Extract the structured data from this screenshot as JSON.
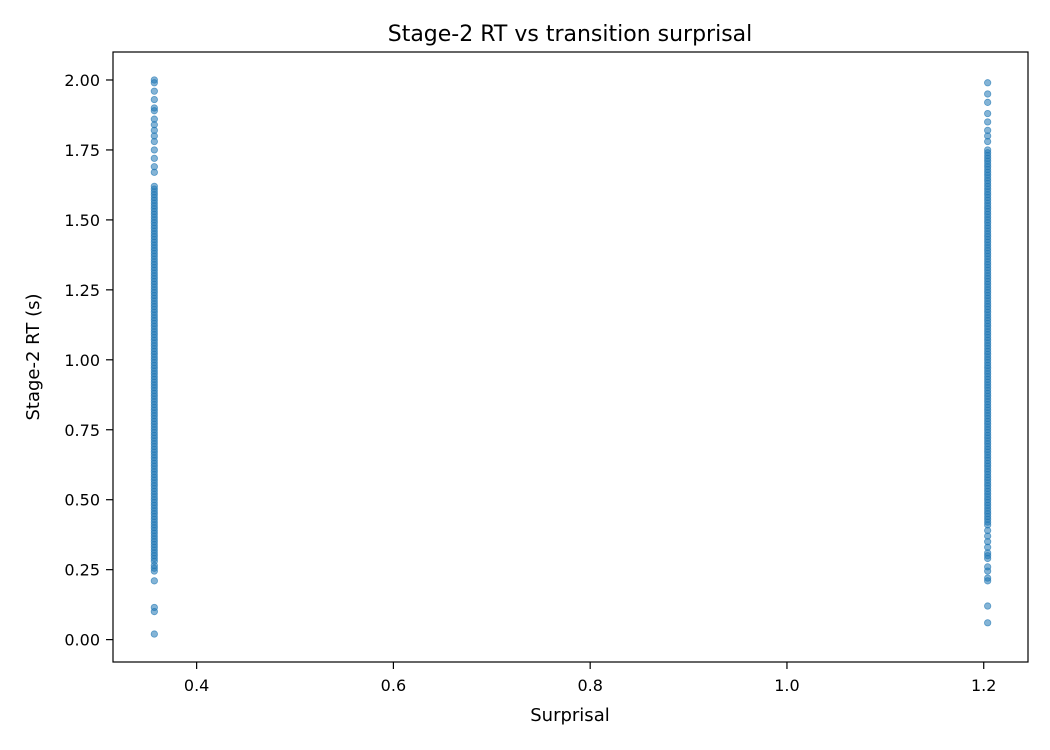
{
  "chart_data": {
    "type": "scatter",
    "title": "Stage-2 RT vs transition surprisal",
    "xlabel": "Surprisal",
    "ylabel": "Stage-2 RT (s)",
    "xlim": [
      0.315,
      1.245
    ],
    "ylim": [
      -0.08,
      2.1
    ],
    "xticks": [
      0.4,
      0.6,
      0.8,
      1.0,
      1.2
    ],
    "xtick_labels": [
      "0.4",
      "0.6",
      "0.8",
      "1.0",
      "1.2"
    ],
    "yticks": [
      0.0,
      0.25,
      0.5,
      0.75,
      1.0,
      1.25,
      1.5,
      1.75,
      2.0
    ],
    "ytick_labels": [
      "0.00",
      "0.25",
      "0.50",
      "0.75",
      "1.00",
      "1.25",
      "1.50",
      "1.75",
      "2.00"
    ],
    "grid": false,
    "legend": "none",
    "point_color": "#1f77b4",
    "point_alpha": 0.55,
    "series": [
      {
        "x_value": 0.357,
        "y_values": [
          0.02,
          0.1,
          0.115,
          0.21,
          0.245,
          0.255,
          0.265,
          0.28,
          0.29,
          0.3,
          0.31,
          0.32,
          0.33,
          0.34,
          0.35,
          0.36,
          0.37,
          0.38,
          0.39,
          0.4,
          0.41,
          0.42,
          0.43,
          0.44,
          0.45,
          0.46,
          0.47,
          0.48,
          0.49,
          0.5,
          0.51,
          0.52,
          0.53,
          0.54,
          0.55,
          0.56,
          0.57,
          0.58,
          0.59,
          0.6,
          0.61,
          0.62,
          0.63,
          0.64,
          0.65,
          0.66,
          0.67,
          0.68,
          0.69,
          0.7,
          0.71,
          0.72,
          0.73,
          0.74,
          0.75,
          0.76,
          0.77,
          0.78,
          0.79,
          0.8,
          0.81,
          0.82,
          0.83,
          0.84,
          0.85,
          0.86,
          0.87,
          0.88,
          0.89,
          0.9,
          0.91,
          0.92,
          0.93,
          0.94,
          0.95,
          0.96,
          0.97,
          0.98,
          0.99,
          1.0,
          1.01,
          1.02,
          1.03,
          1.04,
          1.05,
          1.06,
          1.07,
          1.08,
          1.09,
          1.1,
          1.11,
          1.12,
          1.13,
          1.14,
          1.15,
          1.16,
          1.17,
          1.18,
          1.19,
          1.2,
          1.21,
          1.22,
          1.23,
          1.24,
          1.25,
          1.26,
          1.27,
          1.28,
          1.29,
          1.3,
          1.31,
          1.32,
          1.33,
          1.34,
          1.35,
          1.36,
          1.37,
          1.38,
          1.39,
          1.4,
          1.41,
          1.42,
          1.43,
          1.44,
          1.45,
          1.46,
          1.47,
          1.48,
          1.49,
          1.5,
          1.51,
          1.52,
          1.53,
          1.54,
          1.55,
          1.56,
          1.57,
          1.58,
          1.59,
          1.6,
          1.61,
          1.62,
          1.67,
          1.69,
          1.72,
          1.75,
          1.78,
          1.8,
          1.82,
          1.84,
          1.86,
          1.89,
          1.9,
          1.93,
          1.96,
          1.99,
          2.0
        ]
      },
      {
        "x_value": 1.204,
        "y_values": [
          0.06,
          0.12,
          0.21,
          0.22,
          0.245,
          0.26,
          0.29,
          0.3,
          0.31,
          0.33,
          0.35,
          0.37,
          0.39,
          0.41,
          0.42,
          0.43,
          0.44,
          0.45,
          0.46,
          0.47,
          0.48,
          0.49,
          0.5,
          0.51,
          0.52,
          0.53,
          0.54,
          0.55,
          0.56,
          0.57,
          0.58,
          0.59,
          0.6,
          0.61,
          0.62,
          0.63,
          0.64,
          0.65,
          0.66,
          0.67,
          0.68,
          0.69,
          0.7,
          0.71,
          0.72,
          0.73,
          0.74,
          0.75,
          0.76,
          0.77,
          0.78,
          0.79,
          0.8,
          0.81,
          0.82,
          0.83,
          0.84,
          0.85,
          0.86,
          0.87,
          0.88,
          0.89,
          0.9,
          0.91,
          0.92,
          0.93,
          0.94,
          0.95,
          0.96,
          0.97,
          0.98,
          0.99,
          1.0,
          1.01,
          1.02,
          1.03,
          1.04,
          1.05,
          1.06,
          1.07,
          1.08,
          1.09,
          1.1,
          1.11,
          1.12,
          1.13,
          1.14,
          1.15,
          1.16,
          1.17,
          1.18,
          1.19,
          1.2,
          1.21,
          1.22,
          1.23,
          1.24,
          1.25,
          1.26,
          1.27,
          1.28,
          1.29,
          1.3,
          1.31,
          1.32,
          1.33,
          1.34,
          1.35,
          1.36,
          1.37,
          1.38,
          1.39,
          1.4,
          1.41,
          1.42,
          1.43,
          1.44,
          1.45,
          1.46,
          1.47,
          1.48,
          1.49,
          1.5,
          1.51,
          1.52,
          1.53,
          1.54,
          1.55,
          1.56,
          1.57,
          1.58,
          1.59,
          1.6,
          1.61,
          1.62,
          1.63,
          1.64,
          1.65,
          1.66,
          1.67,
          1.68,
          1.69,
          1.7,
          1.71,
          1.72,
          1.73,
          1.74,
          1.75,
          1.78,
          1.8,
          1.82,
          1.85,
          1.88,
          1.92,
          1.95,
          1.99
        ]
      }
    ]
  }
}
